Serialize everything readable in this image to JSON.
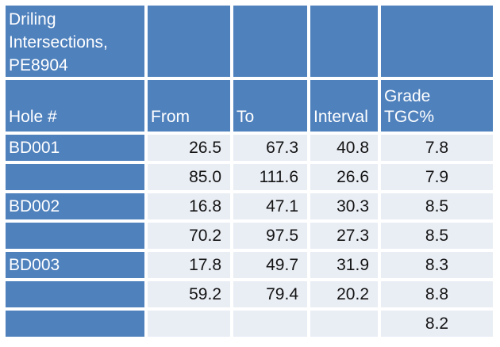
{
  "table": {
    "title": "Driling Intersections, PE8904",
    "columns": {
      "hole": "Hole #",
      "from": "From",
      "to": "To",
      "interval": "Interval",
      "grade": "Grade\nTGC%"
    },
    "rows": [
      {
        "hole": "BD001",
        "from": "26.5",
        "to": "67.3",
        "interval": "40.8",
        "grade": "7.8"
      },
      {
        "hole": "",
        "from": "85.0",
        "to": "111.6",
        "interval": "26.6",
        "grade": "7.9"
      },
      {
        "hole": "BD002",
        "from": "16.8",
        "to": "47.1",
        "interval": "30.3",
        "grade": "8.5"
      },
      {
        "hole": "",
        "from": "70.2",
        "to": "97.5",
        "interval": "27.3",
        "grade": "8.5"
      },
      {
        "hole": "BD003",
        "from": "17.8",
        "to": "49.7",
        "interval": "31.9",
        "grade": "8.3"
      },
      {
        "hole": "",
        "from": "59.2",
        "to": "79.4",
        "interval": "20.2",
        "grade": "8.8"
      },
      {
        "hole": "",
        "from": "",
        "to": "",
        "interval": "",
        "grade": "8.2"
      }
    ],
    "colors": {
      "header_blue": "#4f81bd",
      "cell_light": "#e9edf4",
      "gridline": "#ffffff",
      "text_on_blue": "#ffffff",
      "text_on_light": "#141414"
    }
  }
}
